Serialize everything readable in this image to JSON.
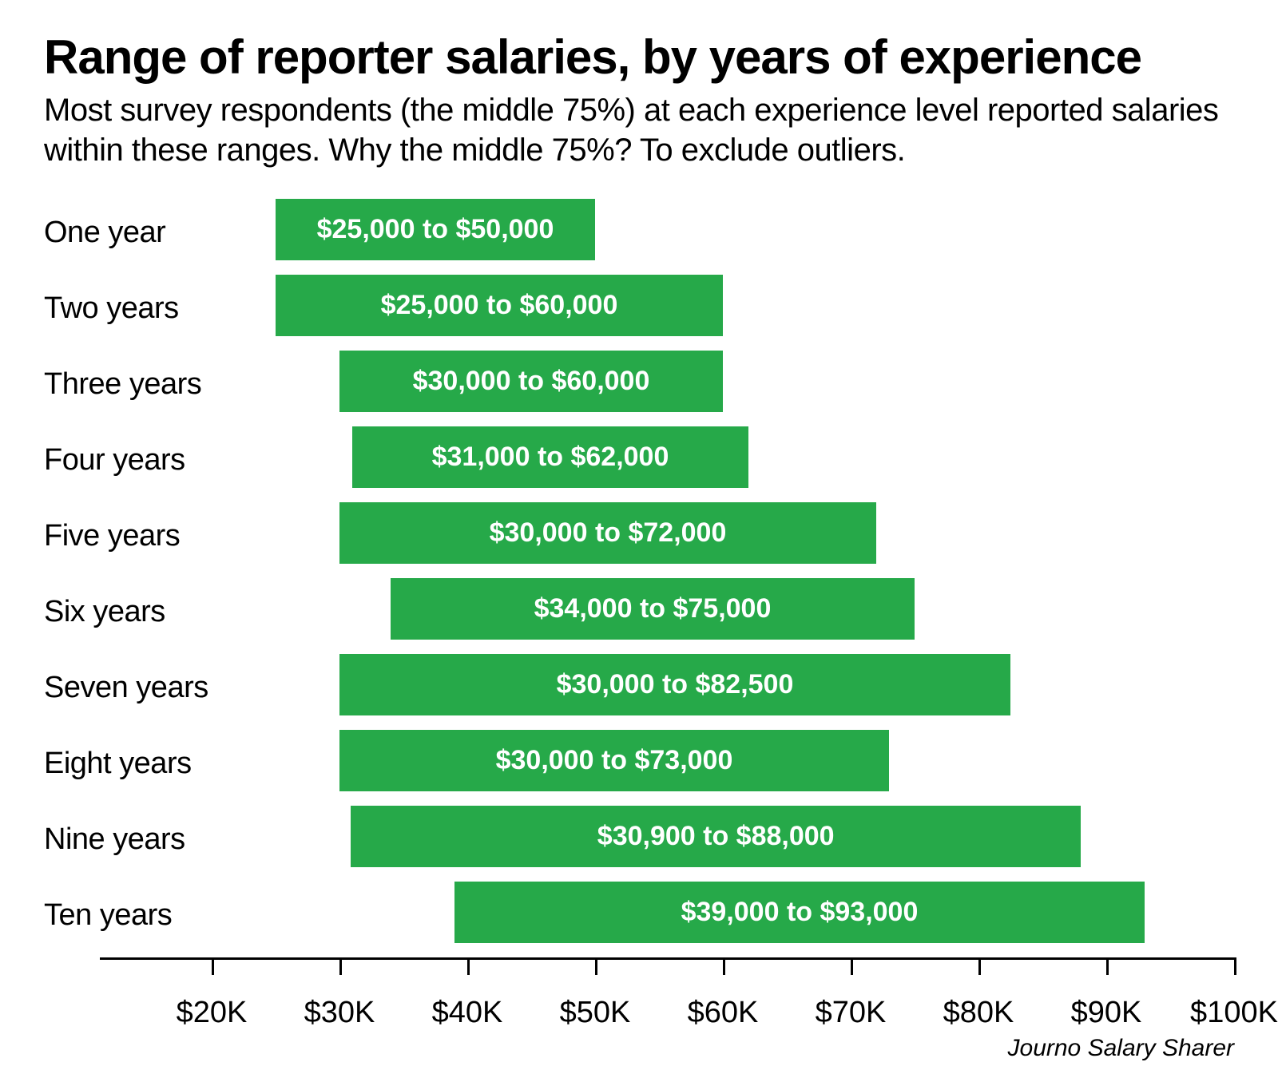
{
  "title": "Range of reporter salaries, by years of experience",
  "subtitle": "Most survey respondents (the middle 75%) at each experience level reported salaries within these ranges. Why the middle 75%? To exclude outliers.",
  "source": "Journo Salary Sharer",
  "chart": {
    "type": "range-bar",
    "bar_color": "#26a949",
    "bar_text_color": "#ffffff",
    "background_color": "#ffffff",
    "axis_color": "#000000",
    "title_fontsize": 60,
    "subtitle_fontsize": 40,
    "label_fontsize": 38,
    "bar_label_fontsize": 34,
    "tick_label_fontsize": 38,
    "axis": {
      "min": 20000,
      "max": 100000,
      "ticks": [
        20000,
        30000,
        40000,
        50000,
        60000,
        70000,
        80000,
        90000,
        100000
      ],
      "tick_labels": [
        "$20K",
        "$30K",
        "$40K",
        "$50K",
        "$60K",
        "$70K",
        "$80K",
        "$90K",
        "$100K"
      ]
    },
    "rows": [
      {
        "label": "One year",
        "low": 25000,
        "high": 50000,
        "text": "$25,000 to $50,000"
      },
      {
        "label": "Two years",
        "low": 25000,
        "high": 60000,
        "text": "$25,000 to $60,000"
      },
      {
        "label": "Three years",
        "low": 30000,
        "high": 60000,
        "text": "$30,000 to $60,000"
      },
      {
        "label": "Four years",
        "low": 31000,
        "high": 62000,
        "text": "$31,000 to $62,000"
      },
      {
        "label": "Five years",
        "low": 30000,
        "high": 72000,
        "text": "$30,000 to $72,000"
      },
      {
        "label": "Six years",
        "low": 34000,
        "high": 75000,
        "text": "$34,000 to $75,000"
      },
      {
        "label": "Seven years",
        "low": 30000,
        "high": 82500,
        "text": "$30,000 to $82,500"
      },
      {
        "label": "Eight years",
        "low": 30000,
        "high": 73000,
        "text": "$30,000 to $73,000"
      },
      {
        "label": "Nine years",
        "low": 30900,
        "high": 88000,
        "text": "$30,900 to $88,000"
      },
      {
        "label": "Ten years",
        "low": 39000,
        "high": 93000,
        "text": "$39,000 to $93,000"
      }
    ]
  }
}
